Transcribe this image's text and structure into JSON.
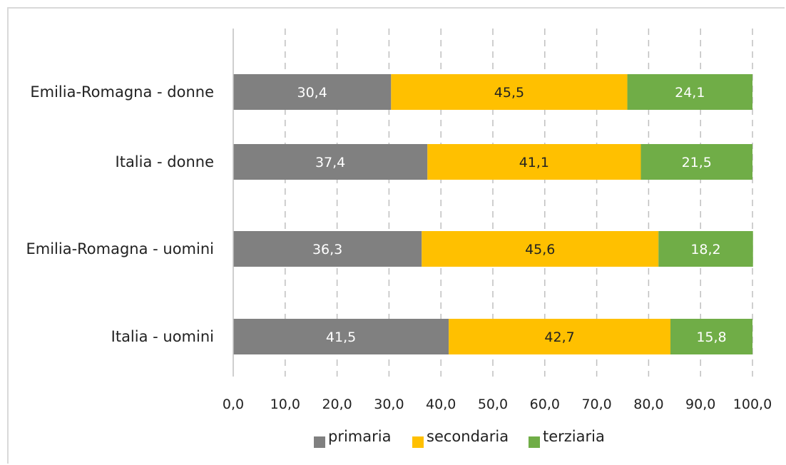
{
  "chart_data": {
    "type": "bar",
    "orientation": "horizontal",
    "stacked": true,
    "categories": [
      "Emilia-Romagna - donne",
      "Italia - donne",
      "Emilia-Romagna - uomini",
      "Italia - uomini"
    ],
    "series": [
      {
        "name": "primaria",
        "color": "#808080",
        "label_color": "#ffffff",
        "values": [
          30.4,
          37.4,
          36.3,
          41.5
        ],
        "labels": [
          "30,4",
          "37,4",
          "36,3",
          "41,5"
        ]
      },
      {
        "name": "secondaria",
        "color": "#ffc000",
        "label_color": "#222222",
        "values": [
          45.5,
          41.1,
          45.6,
          42.7
        ],
        "labels": [
          "45,5",
          "41,1",
          "45,6",
          "42,7"
        ]
      },
      {
        "name": "terziaria",
        "color": "#70ad47",
        "label_color": "#ffffff",
        "values": [
          24.1,
          21.5,
          18.2,
          15.8
        ],
        "labels": [
          "24,1",
          "21,5",
          "18,2",
          "15,8"
        ]
      }
    ],
    "xlim": [
      0,
      100
    ],
    "xticks": [
      0,
      10,
      20,
      30,
      40,
      50,
      60,
      70,
      80,
      90,
      100
    ],
    "xtick_labels": [
      "0,0",
      "10,0",
      "20,0",
      "30,0",
      "40,0",
      "50,0",
      "60,0",
      "70,0",
      "80,0",
      "90,0",
      "100,0"
    ],
    "grid": true,
    "legend_position": "bottom"
  }
}
